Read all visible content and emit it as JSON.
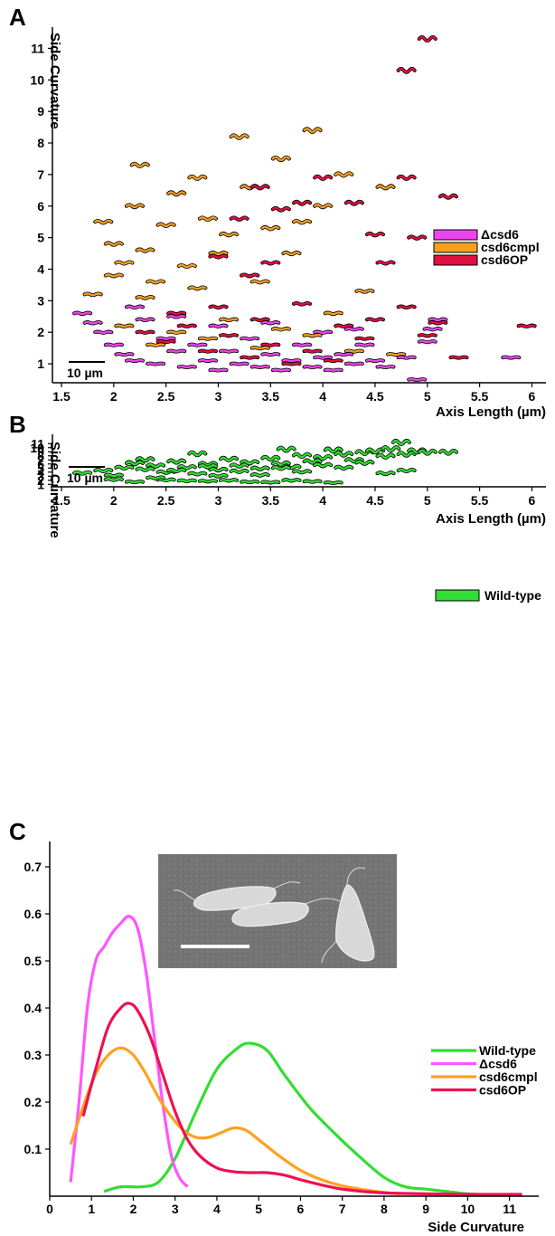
{
  "panels": {
    "a": {
      "letter": "A"
    },
    "b": {
      "letter": "B"
    },
    "c": {
      "letter": "C"
    }
  },
  "colors": {
    "delta_csd6": "#ee44ee",
    "csd6cmpl": "#f5a020",
    "csd6OP": "#e01040",
    "wild_type": "#33dd33",
    "outline": "#000000"
  },
  "chart_data": [
    {
      "type": "scatter",
      "marker": "helical-cell-outline",
      "xlabel": "Axis Length (µm)",
      "ylabel": "Side Curvature",
      "xlim": [
        1.5,
        6.1
      ],
      "ylim": [
        0.4,
        11.5
      ],
      "xticks": [
        "1.5",
        "2",
        "2.5",
        "3",
        "3.5",
        "4",
        "4.5",
        "5",
        "5.5",
        "6"
      ],
      "yticks": [
        "1",
        "2",
        "3",
        "4",
        "5",
        "6",
        "7",
        "8",
        "9",
        "10",
        "11"
      ],
      "scale_bar": "10 µm",
      "legend_position": "right",
      "series": [
        {
          "name": "Δcsd6",
          "color": "#ee44ee",
          "points": [
            [
              1.7,
              2.6
            ],
            [
              1.8,
              2.3
            ],
            [
              1.9,
              2.0
            ],
            [
              2.0,
              1.6
            ],
            [
              2.1,
              1.3
            ],
            [
              2.2,
              1.1
            ],
            [
              2.3,
              2.4
            ],
            [
              2.4,
              1.0
            ],
            [
              2.5,
              1.8
            ],
            [
              2.6,
              1.4
            ],
            [
              2.7,
              0.9
            ],
            [
              2.8,
              1.6
            ],
            [
              2.9,
              1.1
            ],
            [
              3.0,
              0.8
            ],
            [
              3.1,
              1.4
            ],
            [
              3.2,
              1.0
            ],
            [
              3.3,
              1.8
            ],
            [
              3.4,
              0.9
            ],
            [
              3.5,
              1.3
            ],
            [
              3.6,
              0.8
            ],
            [
              3.7,
              1.1
            ],
            [
              3.8,
              1.6
            ],
            [
              3.9,
              0.9
            ],
            [
              4.0,
              1.2
            ],
            [
              4.1,
              0.8
            ],
            [
              4.2,
              1.3
            ],
            [
              4.3,
              1.0
            ],
            [
              4.4,
              1.6
            ],
            [
              4.5,
              1.1
            ],
            [
              4.6,
              0.9
            ],
            [
              4.8,
              1.2
            ],
            [
              4.9,
              0.5
            ],
            [
              5.0,
              1.7
            ],
            [
              5.05,
              2.1
            ],
            [
              5.1,
              2.4
            ],
            [
              5.8,
              1.2
            ],
            [
              2.2,
              2.8
            ],
            [
              2.6,
              2.5
            ],
            [
              3.0,
              2.2
            ],
            [
              3.5,
              2.3
            ],
            [
              4.0,
              2.0
            ],
            [
              4.3,
              2.1
            ]
          ]
        },
        {
          "name": "csd6cmpl",
          "color": "#f5a020",
          "points": [
            [
              1.9,
              5.5
            ],
            [
              2.0,
              4.8
            ],
            [
              2.1,
              4.2
            ],
            [
              2.2,
              6.0
            ],
            [
              2.25,
              7.3
            ],
            [
              2.3,
              4.6
            ],
            [
              2.4,
              3.6
            ],
            [
              2.5,
              5.4
            ],
            [
              2.6,
              6.4
            ],
            [
              2.7,
              4.1
            ],
            [
              2.8,
              6.9
            ],
            [
              2.9,
              5.6
            ],
            [
              3.0,
              4.5
            ],
            [
              3.1,
              5.1
            ],
            [
              3.2,
              8.2
            ],
            [
              3.3,
              6.6
            ],
            [
              3.4,
              3.6
            ],
            [
              3.5,
              5.3
            ],
            [
              3.6,
              7.5
            ],
            [
              3.7,
              4.5
            ],
            [
              3.8,
              5.5
            ],
            [
              3.9,
              8.4
            ],
            [
              4.0,
              6.0
            ],
            [
              4.2,
              7.0
            ],
            [
              4.4,
              3.3
            ],
            [
              4.6,
              6.6
            ],
            [
              1.8,
              3.2
            ],
            [
              2.0,
              3.8
            ],
            [
              2.3,
              3.1
            ],
            [
              2.8,
              3.4
            ],
            [
              3.3,
              3.8
            ],
            [
              4.1,
              2.6
            ],
            [
              2.1,
              2.2
            ],
            [
              2.6,
              2.0
            ],
            [
              3.1,
              2.4
            ],
            [
              3.6,
              2.1
            ],
            [
              2.4,
              1.6
            ],
            [
              2.9,
              1.8
            ],
            [
              3.4,
              1.5
            ],
            [
              3.9,
              1.9
            ],
            [
              4.3,
              1.4
            ],
            [
              4.7,
              1.3
            ]
          ]
        },
        {
          "name": "csd6OP",
          "color": "#e01040",
          "points": [
            [
              3.0,
              4.4
            ],
            [
              3.2,
              5.6
            ],
            [
              3.4,
              6.6
            ],
            [
              3.6,
              5.9
            ],
            [
              3.8,
              6.1
            ],
            [
              4.0,
              6.9
            ],
            [
              4.3,
              6.1
            ],
            [
              4.5,
              5.1
            ],
            [
              4.8,
              6.9
            ],
            [
              4.9,
              5.0
            ],
            [
              5.2,
              6.3
            ],
            [
              4.6,
              4.2
            ],
            [
              3.5,
              4.2
            ],
            [
              3.3,
              3.8
            ],
            [
              4.8,
              10.3
            ],
            [
              5.0,
              11.3
            ],
            [
              4.8,
              2.8
            ],
            [
              5.1,
              2.3
            ],
            [
              5.95,
              2.2
            ],
            [
              5.0,
              1.9
            ],
            [
              5.3,
              1.2
            ],
            [
              4.5,
              2.4
            ],
            [
              4.2,
              2.2
            ],
            [
              2.3,
              2.0
            ],
            [
              2.5,
              1.7
            ],
            [
              2.7,
              2.2
            ],
            [
              2.9,
              1.4
            ],
            [
              3.1,
              1.9
            ],
            [
              3.3,
              1.2
            ],
            [
              3.5,
              1.6
            ],
            [
              3.7,
              1.0
            ],
            [
              3.9,
              1.4
            ],
            [
              4.1,
              1.1
            ],
            [
              4.4,
              1.8
            ],
            [
              2.6,
              2.6
            ],
            [
              3.0,
              2.8
            ],
            [
              3.4,
              2.4
            ],
            [
              3.8,
              2.9
            ]
          ]
        }
      ]
    },
    {
      "type": "scatter",
      "marker": "helical-cell-outline",
      "xlabel": "Axis Length (µm)",
      "ylabel": "Side Curvature",
      "xlim": [
        1.5,
        6.1
      ],
      "ylim": [
        0.4,
        11.5
      ],
      "xticks": [
        "1.5",
        "2",
        "2.5",
        "3",
        "3.5",
        "4",
        "4.5",
        "5",
        "5.5",
        "6"
      ],
      "yticks": [
        "1",
        "2",
        "3",
        "4",
        "5",
        "6",
        "7",
        "8",
        "9",
        "10",
        "11"
      ],
      "scale_bar": "10 µm",
      "legend_position": "right",
      "series": [
        {
          "name": "Wild-type",
          "color": "#33dd33",
          "points": [
            [
              1.7,
              3.8
            ],
            [
              1.9,
              4.4
            ],
            [
              2.0,
              3.2
            ],
            [
              2.1,
              5.1
            ],
            [
              2.2,
              6.2
            ],
            [
              2.3,
              7.1
            ],
            [
              2.4,
              5.6
            ],
            [
              2.5,
              4.0
            ],
            [
              2.6,
              6.6
            ],
            [
              2.7,
              5.2
            ],
            [
              2.8,
              3.6
            ],
            [
              2.9,
              6.0
            ],
            [
              3.0,
              4.6
            ],
            [
              3.1,
              7.2
            ],
            [
              3.2,
              5.6
            ],
            [
              3.3,
              6.4
            ],
            [
              3.4,
              4.9
            ],
            [
              3.5,
              7.4
            ],
            [
              3.6,
              6.1
            ],
            [
              3.65,
              9.6
            ],
            [
              3.7,
              5.3
            ],
            [
              3.8,
              8.1
            ],
            [
              3.9,
              6.6
            ],
            [
              4.0,
              7.6
            ],
            [
              4.1,
              9.4
            ],
            [
              4.2,
              8.4
            ],
            [
              4.3,
              6.9
            ],
            [
              4.4,
              8.8
            ],
            [
              4.5,
              9.2
            ],
            [
              4.6,
              7.9
            ],
            [
              4.65,
              9.7
            ],
            [
              4.75,
              11.3
            ],
            [
              4.8,
              8.4
            ],
            [
              4.9,
              9.2
            ],
            [
              5.0,
              8.9
            ],
            [
              5.2,
              8.9
            ],
            [
              4.6,
              3.7
            ],
            [
              4.8,
              4.4
            ],
            [
              2.0,
              2.2
            ],
            [
              2.2,
              1.6
            ],
            [
              2.5,
              2.1
            ],
            [
              2.7,
              1.9
            ],
            [
              2.9,
              1.8
            ],
            [
              3.1,
              2.0
            ],
            [
              3.3,
              1.6
            ],
            [
              3.5,
              1.5
            ],
            [
              3.7,
              2.0
            ],
            [
              3.9,
              1.7
            ],
            [
              4.1,
              1.4
            ],
            [
              2.8,
              8.5
            ],
            [
              2.3,
              4.7
            ],
            [
              2.6,
              4.4
            ],
            [
              2.9,
              5.4
            ],
            [
              3.2,
              4.2
            ],
            [
              3.6,
              5.0
            ],
            [
              4.0,
              5.7
            ],
            [
              4.4,
              6.3
            ],
            [
              3.0,
              3.1
            ],
            [
              3.4,
              3.3
            ],
            [
              2.4,
              2.6
            ],
            [
              3.8,
              4.1
            ],
            [
              4.2,
              5.1
            ]
          ]
        }
      ]
    },
    {
      "type": "line",
      "xlabel": "Side Curvature",
      "ylabel": "",
      "xlim": [
        0,
        11.7
      ],
      "ylim": [
        0,
        0.75
      ],
      "xticks": [
        "0",
        "1",
        "2",
        "3",
        "4",
        "5",
        "6",
        "7",
        "8",
        "9",
        "10",
        "11"
      ],
      "yticks": [
        "0.1",
        "0.2",
        "0.3",
        "0.4",
        "0.5",
        "0.6",
        "0.7"
      ],
      "inset": {
        "kind": "micrograph",
        "scale_bar": true
      },
      "legend_position": "right",
      "series": [
        {
          "name": "Wild-type",
          "color": "#33dd33",
          "x": [
            1.3,
            1.7,
            2.2,
            2.6,
            3.0,
            3.5,
            4.0,
            4.5,
            4.8,
            5.2,
            5.6,
            6.2,
            6.8,
            7.4,
            8.0,
            8.5,
            9.0,
            9.5,
            10.0,
            10.5,
            11.0
          ],
          "y": [
            0.01,
            0.02,
            0.02,
            0.03,
            0.08,
            0.18,
            0.27,
            0.315,
            0.325,
            0.31,
            0.26,
            0.19,
            0.135,
            0.085,
            0.04,
            0.02,
            0.015,
            0.01,
            0.005,
            0.003,
            0.002
          ]
        },
        {
          "name": "Δcsd6",
          "color": "#ff55ff",
          "x": [
            0.5,
            0.7,
            0.9,
            1.1,
            1.3,
            1.5,
            1.7,
            1.9,
            2.1,
            2.3,
            2.5,
            2.7,
            2.9,
            3.1,
            3.3
          ],
          "y": [
            0.03,
            0.2,
            0.4,
            0.5,
            0.53,
            0.56,
            0.58,
            0.595,
            0.57,
            0.48,
            0.34,
            0.2,
            0.09,
            0.04,
            0.02
          ]
        },
        {
          "name": "csd6cmpl",
          "color": "#ffa020",
          "x": [
            0.5,
            0.8,
            1.1,
            1.4,
            1.7,
            2.0,
            2.3,
            2.6,
            2.9,
            3.2,
            3.5,
            3.8,
            4.1,
            4.4,
            4.7,
            5.0,
            5.5,
            6.0,
            6.5,
            7.0,
            7.5,
            8.0,
            8.4
          ],
          "y": [
            0.11,
            0.19,
            0.26,
            0.3,
            0.315,
            0.3,
            0.26,
            0.21,
            0.17,
            0.14,
            0.125,
            0.125,
            0.135,
            0.145,
            0.14,
            0.12,
            0.085,
            0.055,
            0.035,
            0.022,
            0.014,
            0.008,
            0.005
          ]
        },
        {
          "name": "csd6OP",
          "color": "#ee1050",
          "x": [
            0.8,
            1.1,
            1.4,
            1.7,
            1.9,
            2.1,
            2.4,
            2.7,
            3.0,
            3.3,
            3.6,
            4.0,
            4.4,
            4.8,
            5.2,
            5.6,
            6.0,
            6.5,
            7.0,
            7.5,
            8.0,
            9.0,
            10.0,
            11.3
          ],
          "y": [
            0.17,
            0.27,
            0.36,
            0.4,
            0.41,
            0.395,
            0.34,
            0.26,
            0.18,
            0.12,
            0.085,
            0.06,
            0.052,
            0.05,
            0.05,
            0.045,
            0.035,
            0.024,
            0.015,
            0.01,
            0.007,
            0.005,
            0.004,
            0.004
          ]
        }
      ]
    }
  ]
}
